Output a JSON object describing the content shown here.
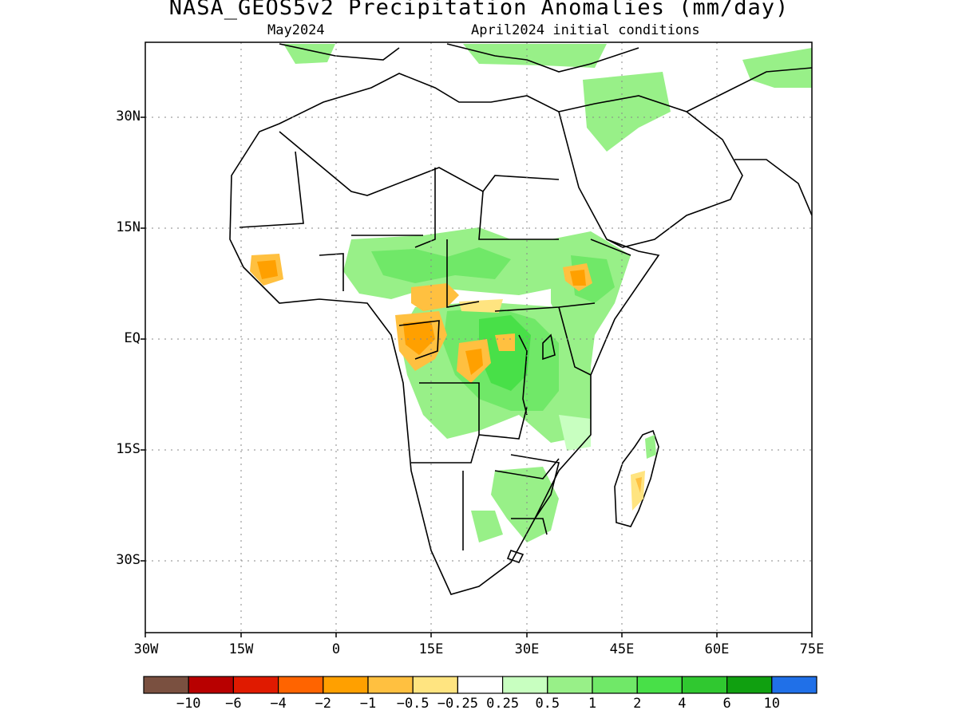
{
  "title": "NASA_GEOS5v2 Precipitation Anomalies (mm/day)",
  "subtitle_left": "May2024",
  "subtitle_right": "April2024 initial conditions",
  "axes": {
    "y_ticks": [
      "30N",
      "15N",
      "EQ",
      "15S",
      "30S"
    ],
    "x_ticks": [
      "30W",
      "15W",
      "0",
      "15E",
      "30E",
      "45E",
      "60E",
      "75E"
    ],
    "grid": "dotted"
  },
  "colorbar": {
    "colors": [
      "#7a5040",
      "#b80000",
      "#e01a00",
      "#ff6400",
      "#ffa000",
      "#ffc040",
      "#ffe480",
      "#ffffff",
      "#c8ffc0",
      "#98f088",
      "#70e868",
      "#48e048",
      "#30c830",
      "#10a010",
      "#2070e8"
    ],
    "labels": [
      "−10",
      "−6",
      "−4",
      "−2",
      "−1",
      "−0.5",
      "−0.25",
      "0.25",
      "0.5",
      "1",
      "2",
      "4",
      "6",
      "10"
    ]
  },
  "map": {
    "region": "Africa and Middle East",
    "lon_range": [
      "30W",
      "75E"
    ],
    "lat_range": [
      "40S",
      "39N"
    ],
    "land_color": "#ffffff",
    "outline_color": "#000000"
  }
}
